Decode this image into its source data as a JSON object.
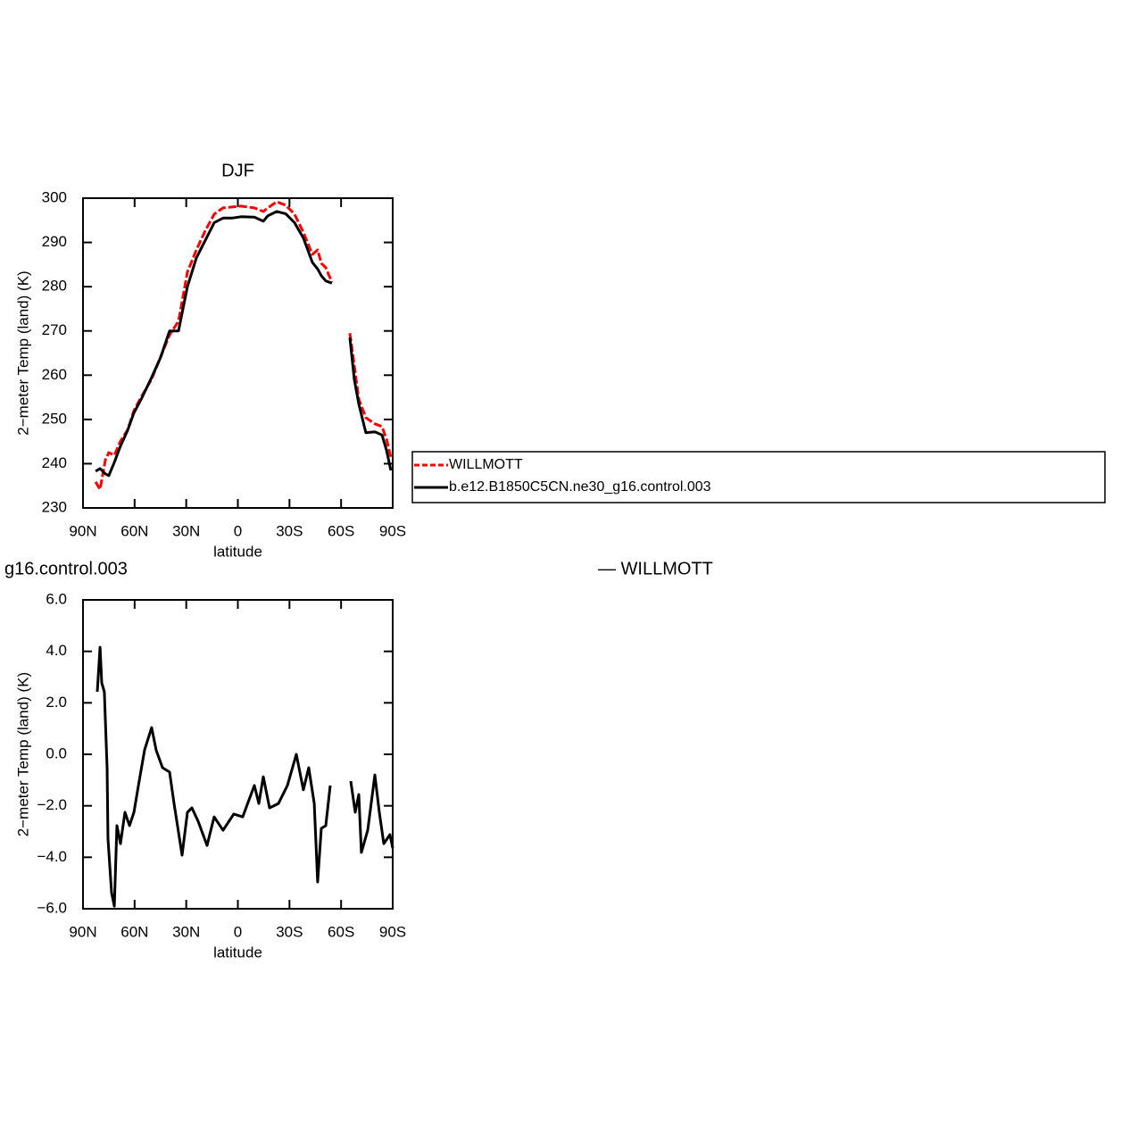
{
  "chart_data": [
    {
      "type": "line",
      "title": "DJF",
      "y_label": "2−meter Temp (land) (K)",
      "x_label": "latitude",
      "xlim": [
        90,
        -90
      ],
      "ylim": [
        230,
        300
      ],
      "xticks": [
        {
          "value": 90,
          "label": "90N"
        },
        {
          "value": 60,
          "label": "60N"
        },
        {
          "value": 30,
          "label": "30N"
        },
        0,
        {
          "value": -30,
          "label": "30S"
        },
        {
          "value": -60,
          "label": "60S"
        },
        {
          "value": -90,
          "label": "90S"
        }
      ],
      "yticks": [
        230,
        240,
        250,
        260,
        270,
        280,
        290,
        300
      ],
      "legend": "right",
      "x": [
        82.7,
        80.1,
        77.0,
        75.0,
        71.8,
        68.2,
        64.1,
        60.4,
        56.3,
        50.1,
        44.9,
        39.7,
        34.5,
        29.3,
        24.1,
        18.9,
        13.7,
        8.6,
        3.4,
        -1.8,
        -9.6,
        -14.8,
        -17.4,
        -22.6,
        -27.8,
        -32.9,
        -38.1,
        -43.3,
        -46.4,
        -48.5,
        -51.1,
        -54.7,
        -60,
        -65.1,
        -67.7,
        -70.3,
        -74.4,
        -79.6,
        -83.8,
        -86.4,
        -88.9
      ],
      "series": [
        {
          "name": "WILLMOTT",
          "color": "#ff0000",
          "dashed": true,
          "values": [
            235.9,
            234.2,
            240.9,
            242.5,
            241.9,
            245.1,
            247.6,
            252.0,
            255.0,
            259.1,
            264.1,
            269.1,
            272.2,
            283.3,
            288.3,
            292.7,
            296.4,
            297.8,
            298.0,
            298.2,
            297.8,
            297.0,
            297.8,
            299.2,
            298.4,
            296.4,
            292.3,
            287.3,
            288.3,
            285.3,
            284.3,
            281.0,
            null,
            269.5,
            262.1,
            254.6,
            250.4,
            249.0,
            248.4,
            245.5,
            241.5
          ]
        },
        {
          "name": "b.e12.B1850C5CN.ne30_g16.control.003",
          "color": "#000000",
          "dashed": false,
          "values": [
            238.3,
            238.9,
            237.7,
            237.3,
            240.3,
            244.0,
            247.5,
            251.5,
            254.5,
            259.5,
            264.0,
            270.0,
            270.0,
            280.0,
            286.5,
            290.5,
            294.5,
            295.5,
            295.5,
            295.8,
            295.7,
            294.8,
            296.0,
            297.0,
            296.5,
            294.5,
            291.0,
            285.5,
            284.0,
            282.5,
            281.3,
            280.8,
            null,
            268.5,
            259.0,
            253.5,
            247.0,
            247.2,
            246.5,
            243.0,
            238.5
          ]
        }
      ]
    },
    {
      "type": "line",
      "left_string": "g16.control.003",
      "right_string": "— WILLMOTT",
      "y_label": "2−meter Temp (land) (K)",
      "x_label": "latitude",
      "xlim": [
        90,
        -90
      ],
      "ylim": [
        -6,
        6
      ],
      "xticks": [
        {
          "value": 90,
          "label": "90N"
        },
        {
          "value": 60,
          "label": "60N"
        },
        {
          "value": 30,
          "label": "30N"
        },
        0,
        {
          "value": -30,
          "label": "30S"
        },
        {
          "value": -60,
          "label": "60S"
        },
        {
          "value": -90,
          "label": "90S"
        }
      ],
      "yticks": [
        {
          "value": -6,
          "label": "−6.0"
        },
        {
          "value": -4,
          "label": "−4.0"
        },
        {
          "value": -2,
          "label": "−2.0"
        },
        {
          "value": 0,
          "label": "0.0"
        },
        {
          "value": 2,
          "label": "2.0"
        },
        {
          "value": 4,
          "label": "4.0"
        },
        {
          "value": 6,
          "label": "6.0"
        }
      ],
      "x": [
        81.7,
        80.1,
        79.1,
        77.6,
        76.0,
        75.5,
        73.4,
        71.8,
        70.3,
        68.2,
        65.6,
        63.0,
        60.4,
        57.8,
        54.2,
        50.1,
        47.5,
        43.8,
        39.7,
        37.1,
        32.4,
        29.3,
        26.7,
        23.1,
        17.9,
        13.8,
        8.6,
        2.4,
        -2.8,
        -9.6,
        -12.2,
        -14.8,
        -18.4,
        -23.6,
        -28.8,
        -34.0,
        -38.1,
        -41.2,
        -44.4,
        -46.4,
        -48.5,
        -51.1,
        -53.7,
        -60,
        -65.6,
        -68.2,
        -70.3,
        -71.8,
        -75.5,
        -79.6,
        -82.2,
        -84.8,
        -88.4,
        -90.0
      ],
      "series": [
        {
          "color": "#000000",
          "dashed": false,
          "values": [
            2.43,
            4.16,
            2.77,
            2.43,
            -0.52,
            -3.29,
            -5.38,
            -5.9,
            -2.77,
            -3.47,
            -2.25,
            -2.77,
            -2.25,
            -1.21,
            0.17,
            1.04,
            0.17,
            -0.52,
            -0.69,
            -1.91,
            -3.92,
            -2.25,
            -2.08,
            -2.6,
            -3.54,
            -2.43,
            -2.95,
            -2.32,
            -2.43,
            -1.21,
            -1.91,
            -0.87,
            -2.08,
            -1.91,
            -1.21,
            0.0,
            -1.38,
            -0.52,
            -1.91,
            -4.96,
            -2.88,
            -2.77,
            -1.21,
            null,
            -1.04,
            -2.25,
            -1.56,
            -3.81,
            -2.95,
            -0.8,
            -2.25,
            -3.47,
            -3.12,
            -3.64
          ]
        }
      ]
    }
  ]
}
